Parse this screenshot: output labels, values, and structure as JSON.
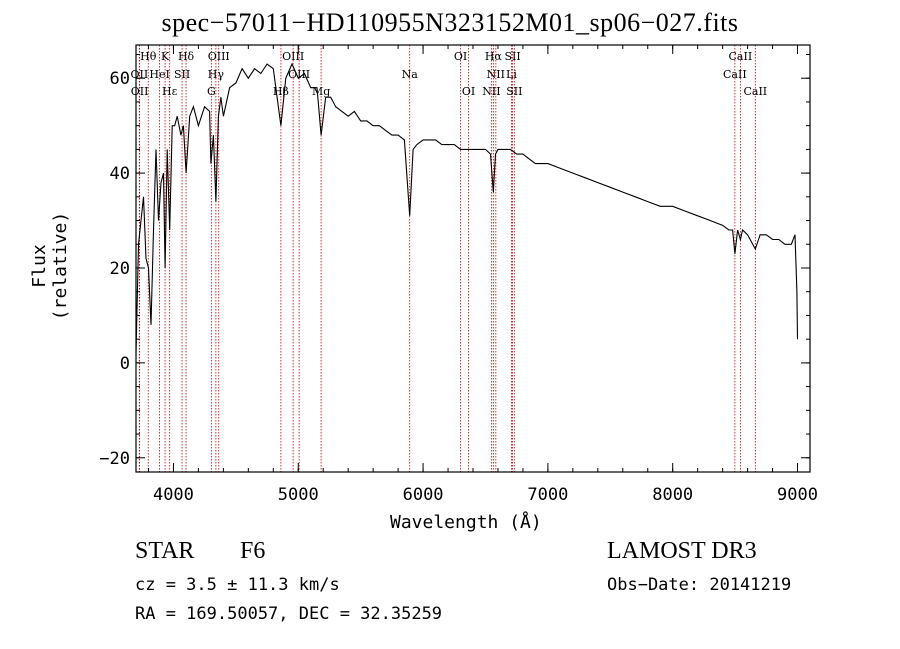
{
  "chart_data": {
    "type": "line",
    "title": "spec−57011−HD110955N323152M01_sp06−027.fits",
    "xlabel": "Wavelength (Å)",
    "ylabel": "Flux (relative)",
    "xlim": [
      3700,
      9100
    ],
    "ylim": [
      -23,
      67
    ],
    "xticks": [
      4000,
      5000,
      6000,
      7000,
      8000,
      9000
    ],
    "yticks": [
      -20,
      0,
      20,
      40,
      60
    ],
    "ytick_labels": [
      "−20",
      "0",
      "20",
      "40",
      "60"
    ],
    "series": [
      {
        "name": "spectrum",
        "x": [
          3700,
          3720,
          3740,
          3760,
          3780,
          3800,
          3820,
          3840,
          3860,
          3880,
          3900,
          3920,
          3933,
          3950,
          3970,
          3990,
          4010,
          4030,
          4060,
          4080,
          4101,
          4130,
          4160,
          4200,
          4250,
          4290,
          4300,
          4320,
          4340,
          4360,
          4380,
          4400,
          4450,
          4500,
          4550,
          4600,
          4650,
          4700,
          4750,
          4800,
          4861,
          4900,
          4950,
          5000,
          5050,
          5100,
          5150,
          5183,
          5220,
          5260,
          5300,
          5350,
          5400,
          5450,
          5500,
          5550,
          5600,
          5650,
          5700,
          5750,
          5800,
          5850,
          5893,
          5920,
          5950,
          6000,
          6050,
          6100,
          6150,
          6200,
          6250,
          6300,
          6350,
          6400,
          6450,
          6500,
          6540,
          6563,
          6580,
          6600,
          6650,
          6700,
          6750,
          6800,
          6850,
          6900,
          6950,
          7000,
          7100,
          7200,
          7300,
          7400,
          7500,
          7600,
          7700,
          7800,
          7900,
          8000,
          8100,
          8200,
          8300,
          8400,
          8450,
          8480,
          8498,
          8520,
          8542,
          8560,
          8600,
          8662,
          8700,
          8750,
          8800,
          8850,
          8900,
          8950,
          8980,
          8995,
          9000
        ],
        "values": [
          2,
          25,
          30,
          35,
          22,
          20,
          8,
          28,
          45,
          30,
          38,
          40,
          20,
          45,
          28,
          50,
          50,
          52,
          48,
          50,
          40,
          52,
          54,
          50,
          54,
          53,
          42,
          48,
          34,
          52,
          56,
          52,
          58,
          59,
          62,
          60,
          62,
          61,
          63,
          62,
          50,
          60,
          63,
          60,
          61,
          58,
          58,
          48,
          56,
          56,
          54,
          53,
          52,
          53,
          51,
          51,
          50,
          50,
          49,
          48,
          48,
          47,
          31,
          45,
          46,
          47,
          47,
          47,
          46,
          46,
          46,
          45,
          45,
          45,
          45,
          45,
          44,
          36,
          44,
          45,
          45,
          45,
          44,
          44,
          43,
          42,
          42,
          42,
          41,
          40,
          39,
          38,
          37,
          36,
          35,
          34,
          33,
          33,
          32,
          31,
          30,
          29,
          28,
          28,
          23,
          28,
          26,
          28,
          27,
          24,
          27,
          27,
          26,
          26,
          25,
          25,
          27,
          15,
          5
        ]
      }
    ],
    "lines": [
      {
        "label": "Hθ",
        "wave": 3798,
        "row": 0
      },
      {
        "label": "K",
        "wave": 3933,
        "row": 0
      },
      {
        "label": "Hδ",
        "wave": 4101,
        "row": 0
      },
      {
        "label": "OIII",
        "wave": 4363,
        "row": 0
      },
      {
        "label": "OIII",
        "wave": 4959,
        "row": 0
      },
      {
        "label": "OI",
        "wave": 6300,
        "row": 0
      },
      {
        "label": "Hα",
        "wave": 6563,
        "row": 0
      },
      {
        "label": "SII",
        "wave": 6717,
        "row": 0
      },
      {
        "label": "CaII",
        "wave": 8542,
        "row": 0
      },
      {
        "label": "OII",
        "wave": 3727,
        "row": 1
      },
      {
        "label": "HeI",
        "wave": 3889,
        "row": 1
      },
      {
        "label": "SII",
        "wave": 4069,
        "row": 1
      },
      {
        "label": "Hγ",
        "wave": 4340,
        "row": 1
      },
      {
        "label": "OIII",
        "wave": 5007,
        "row": 1
      },
      {
        "label": "Na",
        "wave": 5893,
        "row": 1
      },
      {
        "label": "NII",
        "wave": 6583,
        "row": 1
      },
      {
        "label": "Li",
        "wave": 6708,
        "row": 1
      },
      {
        "label": "CaII",
        "wave": 8498,
        "row": 1
      },
      {
        "label": "OII",
        "wave": 3729,
        "row": 2
      },
      {
        "label": "Hε",
        "wave": 3970,
        "row": 2
      },
      {
        "label": "G",
        "wave": 4304,
        "row": 2
      },
      {
        "label": "Hβ",
        "wave": 4861,
        "row": 2
      },
      {
        "label": "Mg",
        "wave": 5183,
        "row": 2
      },
      {
        "label": "OI",
        "wave": 6364,
        "row": 2
      },
      {
        "label": "NII",
        "wave": 6548,
        "row": 2
      },
      {
        "label": "SII",
        "wave": 6731,
        "row": 2
      },
      {
        "label": "CaII",
        "wave": 8662,
        "row": 2
      }
    ]
  },
  "footer": {
    "class_label": "STAR",
    "subclass": "F6",
    "redshift": "cz = 3.5 ± 11.3 km/s",
    "coords": "RA = 169.50057, DEC =  32.35259",
    "survey": "LAMOST DR3",
    "obs_date": "Obs−Date: 20141219"
  },
  "colors": {
    "axis": "#000000",
    "spectrum": "#000000",
    "line_marker": "#cc0000"
  }
}
